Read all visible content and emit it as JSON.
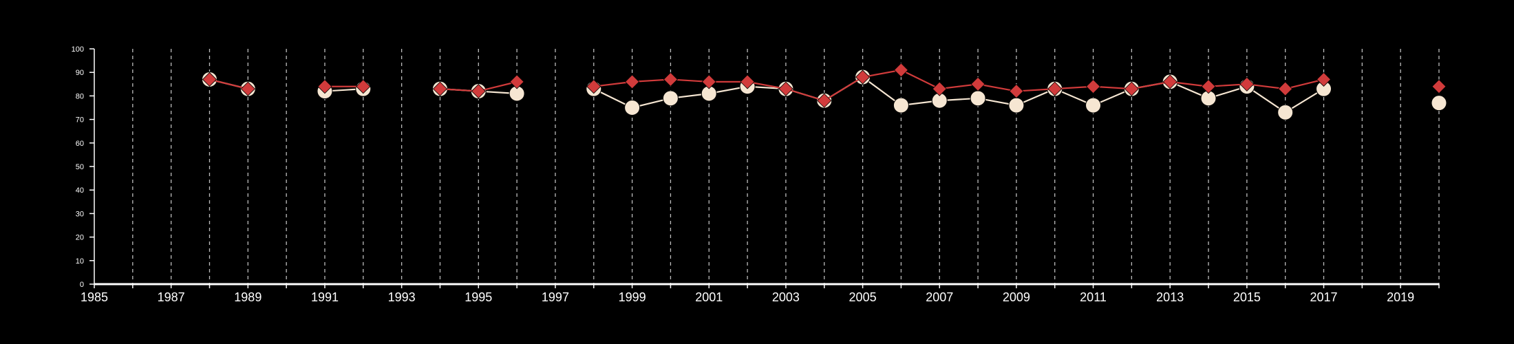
{
  "chart_data": {
    "type": "line",
    "title": "",
    "xlabel": "",
    "ylabel": "",
    "xlim": [
      1985,
      2020
    ],
    "ylim": [
      0,
      100
    ],
    "yticks": [
      0,
      10,
      20,
      30,
      40,
      50,
      60,
      70,
      80,
      90,
      100
    ],
    "xtick_labels": [
      1985,
      1987,
      1989,
      1991,
      1993,
      1995,
      1997,
      1999,
      2001,
      2003,
      2005,
      2007,
      2009,
      2011,
      2013,
      2015,
      2017,
      2019
    ],
    "dashed_vertical_grid": [
      1986,
      1987,
      1988,
      1989,
      1990,
      1991,
      1992,
      1993,
      1994,
      1995,
      1996,
      1997,
      1998,
      1999,
      2000,
      2001,
      2002,
      2003,
      2004,
      2005,
      2006,
      2007,
      2008,
      2009,
      2010,
      2011,
      2012,
      2013,
      2014,
      2015,
      2016,
      2017,
      2018,
      2019,
      2020
    ],
    "legend": "none",
    "colors": {
      "background": "#000000",
      "axis": "#ffffff",
      "grid": "#bdbdbd",
      "series_circle": "#f6e6d2",
      "series_diamond": "#d13b3b"
    },
    "series": [
      {
        "marker": "circle",
        "color": "#f6e6d2",
        "points": [
          [
            1988,
            87
          ],
          [
            1989,
            83
          ],
          null,
          [
            1991,
            82
          ],
          [
            1992,
            83
          ],
          null,
          [
            1994,
            83
          ],
          [
            1995,
            82
          ],
          [
            1996,
            81
          ],
          null,
          [
            1998,
            83
          ],
          [
            1999,
            75
          ],
          [
            2000,
            79
          ],
          [
            2001,
            81
          ],
          [
            2002,
            84
          ],
          [
            2003,
            83
          ],
          [
            2004,
            78
          ],
          [
            2005,
            88
          ],
          [
            2006,
            76
          ],
          [
            2007,
            78
          ],
          [
            2008,
            79
          ],
          [
            2009,
            76
          ],
          [
            2010,
            83
          ],
          [
            2011,
            76
          ],
          [
            2012,
            83
          ],
          [
            2013,
            86
          ],
          [
            2014,
            79
          ],
          [
            2015,
            84
          ],
          [
            2016,
            73
          ],
          [
            2017,
            83
          ],
          null,
          [
            2020,
            77
          ]
        ]
      },
      {
        "marker": "diamond",
        "color": "#d13b3b",
        "points": [
          [
            1988,
            87
          ],
          [
            1989,
            83
          ],
          null,
          [
            1991,
            84
          ],
          [
            1992,
            84
          ],
          null,
          [
            1994,
            83
          ],
          [
            1995,
            82
          ],
          [
            1996,
            86
          ],
          null,
          [
            1998,
            84
          ],
          [
            1999,
            86
          ],
          [
            2000,
            87
          ],
          [
            2001,
            86
          ],
          [
            2002,
            86
          ],
          [
            2003,
            83
          ],
          [
            2004,
            78
          ],
          [
            2005,
            88
          ],
          [
            2006,
            91
          ],
          [
            2007,
            83
          ],
          [
            2008,
            85
          ],
          [
            2009,
            82
          ],
          [
            2010,
            83
          ],
          [
            2011,
            84
          ],
          [
            2012,
            83
          ],
          [
            2013,
            86
          ],
          [
            2014,
            84
          ],
          [
            2015,
            85
          ],
          [
            2016,
            83
          ],
          [
            2017,
            87
          ],
          null,
          [
            2020,
            84
          ]
        ]
      }
    ]
  }
}
